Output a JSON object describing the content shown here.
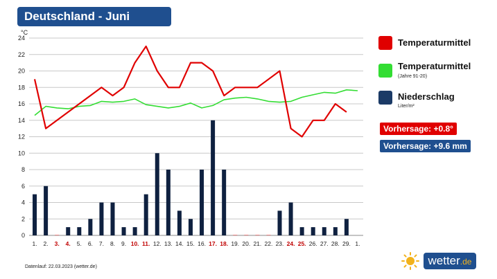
{
  "header": {
    "title": "Deutschland - Juni"
  },
  "legend": {
    "items": [
      {
        "label": "Temperaturmittel",
        "sub": "",
        "color": "#e00000"
      },
      {
        "label": "Temperaturmittel",
        "sub": "(Jahre 91-20)",
        "color": "#33dd33"
      },
      {
        "label": "Niederschlag",
        "sub": "Liter/m²",
        "color": "#1b3a66"
      }
    ]
  },
  "forecast": {
    "temperature": {
      "text": "Vorhersage: +0.8°",
      "color": "#e00000"
    },
    "precipitation": {
      "text": "Vorhersage: +9.6 mm",
      "color": "#1f4f8f"
    }
  },
  "footer": {
    "text": "Datenlauf: 22.03.2023 (wetter.de)"
  },
  "logo": {
    "text": "wetter",
    "suffix": ".de",
    "icon": "sun-icon"
  },
  "chart_data": {
    "type": "bar",
    "ylabel": "°C",
    "ylim": [
      0,
      24
    ],
    "yticks": [
      0,
      2,
      4,
      6,
      8,
      10,
      12,
      14,
      16,
      18,
      20,
      22,
      24
    ],
    "categories": [
      "1.",
      "2.",
      "3.",
      "4.",
      "5.",
      "6.",
      "7.",
      "8.",
      "9.",
      "10.",
      "11.",
      "12.",
      "13.",
      "14.",
      "15.",
      "16.",
      "17.",
      "18.",
      "19.",
      "20.",
      "21.",
      "22.",
      "23.",
      "24.",
      "25.",
      "26.",
      "27.",
      "28.",
      "29.",
      "1."
    ],
    "weekend_indices": [
      2,
      3,
      9,
      10,
      16,
      17,
      23,
      24
    ],
    "series": [
      {
        "type": "bar",
        "color": "#0f2140",
        "values": [
          5,
          6,
          0,
          1,
          1,
          2,
          4,
          4,
          1,
          1,
          5,
          10,
          8,
          3,
          2,
          8,
          14,
          8,
          0,
          0,
          0,
          0,
          3,
          4,
          1,
          1,
          1,
          1,
          2,
          null
        ]
      },
      {
        "type": "line",
        "color": "#e00000",
        "values": [
          19,
          13,
          null,
          null,
          null,
          null,
          18,
          17,
          18,
          21,
          23,
          20,
          18,
          18,
          21,
          21,
          20,
          17,
          18,
          18,
          18,
          null,
          20,
          13,
          12,
          14,
          14,
          16,
          15,
          null
        ]
      },
      {
        "type": "line",
        "color": "#33dd33",
        "values": [
          14.6,
          15.7,
          15.5,
          15.4,
          15.7,
          15.8,
          16.3,
          16.2,
          16.3,
          16.6,
          15.9,
          15.7,
          15.5,
          15.7,
          16.1,
          15.5,
          15.8,
          16.5,
          16.7,
          16.8,
          16.6,
          16.3,
          16.2,
          16.3,
          16.8,
          17.1,
          17.4,
          17.3,
          17.7,
          17.6
        ]
      }
    ]
  }
}
